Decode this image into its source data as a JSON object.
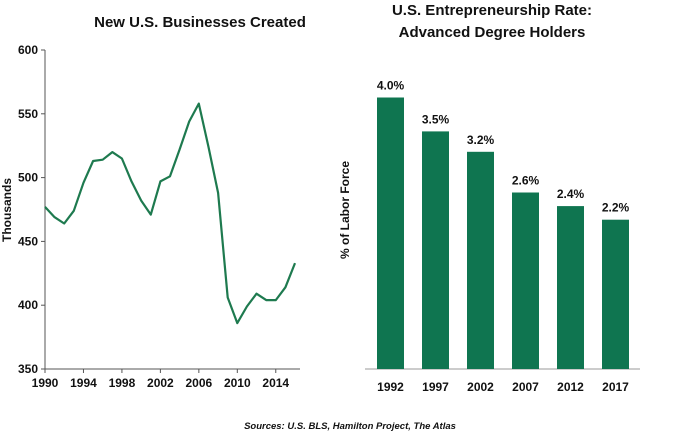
{
  "source_note": "Sources: U.S. BLS, Hamilton Project, The Atlas",
  "colors": {
    "line": "#1e7a4f",
    "bar": "#0f7550",
    "axis": "#555555"
  },
  "chart_data": [
    {
      "type": "line",
      "title": "New U.S. Businesses Created",
      "xlabel": "",
      "ylabel": "Thousands",
      "xlim": [
        1990,
        2016
      ],
      "ylim": [
        350,
        600
      ],
      "yticks": [
        350,
        400,
        450,
        500,
        550,
        600
      ],
      "xticks": [
        1990,
        1994,
        1998,
        2002,
        2006,
        2010,
        2014
      ],
      "grid": false,
      "series": [
        {
          "x": [
            1990,
            1991,
            1992,
            1993,
            1994,
            1995,
            1996,
            1997,
            1998,
            1999,
            2000,
            2001,
            2002,
            2003,
            2004,
            2005,
            2006,
            2007,
            2008,
            2009,
            2010,
            2011,
            2012,
            2013,
            2014,
            2015,
            2016
          ],
          "values": [
            477,
            469,
            464,
            474,
            496,
            513,
            514,
            520,
            515,
            497,
            482,
            471,
            497,
            501,
            522,
            544,
            558,
            524,
            488,
            406,
            386,
            399,
            409,
            404,
            404,
            414,
            433
          ]
        }
      ]
    },
    {
      "type": "bar",
      "title": "U.S. Entrepreneurship Rate:",
      "subtitle": "Advanced Degree Holders",
      "xlabel": "",
      "ylabel": "% of Labor Force",
      "ylim": [
        0,
        4.7
      ],
      "grid": false,
      "categories": [
        "1992",
        "1997",
        "2002",
        "2007",
        "2012",
        "2017"
      ],
      "values": [
        4.0,
        3.5,
        3.2,
        2.6,
        2.4,
        2.2
      ],
      "data_labels": [
        "4.0%",
        "3.5%",
        "3.2%",
        "2.6%",
        "2.4%",
        "2.2%"
      ]
    }
  ]
}
